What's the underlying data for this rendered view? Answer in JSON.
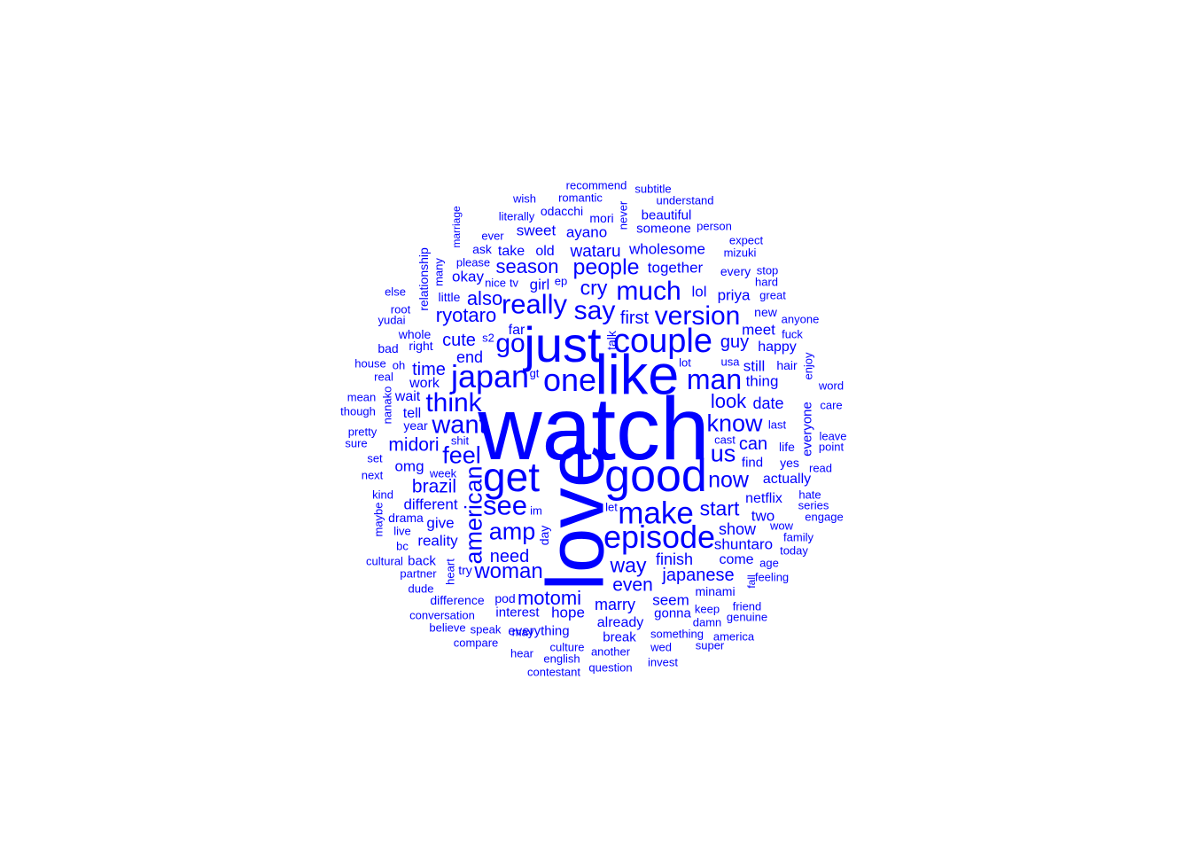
{
  "color": "#0000ff",
  "words": [
    {
      "t": "watch",
      "w": 100
    },
    {
      "t": "love",
      "w": 91
    },
    {
      "t": "like",
      "w": 63
    },
    {
      "t": "just",
      "w": 56
    },
    {
      "t": "good",
      "w": 52
    },
    {
      "t": "get",
      "w": 46
    },
    {
      "t": "couple",
      "w": 38
    },
    {
      "t": "japan",
      "w": 36
    },
    {
      "t": "one",
      "w": 36
    },
    {
      "t": "episode",
      "w": 36
    },
    {
      "t": "make",
      "w": 35
    },
    {
      "t": "man",
      "w": 32
    },
    {
      "t": "really",
      "w": 31
    },
    {
      "t": "see",
      "w": 31
    },
    {
      "t": "version",
      "w": 30
    },
    {
      "t": "much",
      "w": 30
    },
    {
      "t": "say",
      "w": 30
    },
    {
      "t": "think",
      "w": 30
    },
    {
      "t": "go",
      "w": 30
    },
    {
      "t": "want",
      "w": 29
    },
    {
      "t": "american",
      "w": 27
    },
    {
      "t": "know",
      "w": 27
    },
    {
      "t": "amp",
      "w": 27
    },
    {
      "t": "feel",
      "w": 27
    },
    {
      "t": "us",
      "w": 27
    },
    {
      "t": "people",
      "w": 25
    },
    {
      "t": "now",
      "w": 25
    },
    {
      "t": "woman",
      "w": 24
    },
    {
      "t": "start",
      "w": 23
    },
    {
      "t": "cry",
      "w": 23
    },
    {
      "t": "way",
      "w": 23
    },
    {
      "t": "look",
      "w": 22
    },
    {
      "t": "season",
      "w": 22
    },
    {
      "t": "ryotaro",
      "w": 22
    },
    {
      "t": "motomi",
      "w": 22
    },
    {
      "t": "also",
      "w": 22
    },
    {
      "t": "brazil",
      "w": 21
    },
    {
      "t": "midori",
      "w": 21
    },
    {
      "t": "even",
      "w": 21
    },
    {
      "t": "japanese",
      "w": 20
    },
    {
      "t": "cute",
      "w": 20
    },
    {
      "t": "guy",
      "w": 20
    },
    {
      "t": "first",
      "w": 20
    },
    {
      "t": "time",
      "w": 20
    },
    {
      "t": "can",
      "w": 20
    },
    {
      "t": "need",
      "w": 20
    },
    {
      "t": "wataru",
      "w": 19
    },
    {
      "t": "marry",
      "w": 18
    },
    {
      "t": "show",
      "w": 18
    },
    {
      "t": "date",
      "w": 18
    },
    {
      "t": "finish",
      "w": 18
    },
    {
      "t": "end",
      "w": 18
    },
    {
      "t": "ayano",
      "w": 17
    },
    {
      "t": "lol",
      "w": 17
    },
    {
      "t": "different",
      "w": 17
    },
    {
      "t": "give",
      "w": 17
    },
    {
      "t": "two",
      "w": 17
    },
    {
      "t": "shuntaro",
      "w": 17
    },
    {
      "t": "hope",
      "w": 17
    },
    {
      "t": "seem",
      "w": 17
    },
    {
      "t": "meet",
      "w": 17
    },
    {
      "t": "sweet",
      "w": 17
    },
    {
      "t": "priya",
      "w": 17
    },
    {
      "t": "girl",
      "w": 17
    },
    {
      "t": "wholesome",
      "w": 17
    },
    {
      "t": "thing",
      "w": 17
    },
    {
      "t": "omg",
      "w": 17
    },
    {
      "t": "reality",
      "w": 17
    },
    {
      "t": "okay",
      "w": 17
    },
    {
      "t": "together",
      "w": 17
    },
    {
      "t": "still",
      "w": 17
    },
    {
      "t": "take",
      "w": 16
    },
    {
      "t": "old",
      "w": 16
    },
    {
      "t": "work",
      "w": 16
    },
    {
      "t": "tell",
      "w": 16
    },
    {
      "t": "happy",
      "w": 16
    },
    {
      "t": "actually",
      "w": 16
    },
    {
      "t": "netflix",
      "w": 16
    },
    {
      "t": "come",
      "w": 16
    },
    {
      "t": "already",
      "w": 16
    },
    {
      "t": "far",
      "w": 16
    },
    {
      "t": "wait",
      "w": 16
    },
    {
      "t": "someone",
      "w": 15
    },
    {
      "t": "beautiful",
      "w": 15
    },
    {
      "t": "everyone",
      "w": 15
    },
    {
      "t": "find",
      "w": 15
    },
    {
      "t": "gonna",
      "w": 15
    },
    {
      "t": "back",
      "w": 15
    },
    {
      "t": "interest",
      "w": 15
    },
    {
      "t": "everything",
      "w": 15
    },
    {
      "t": "break",
      "w": 15
    },
    {
      "t": "difference",
      "w": 14
    },
    {
      "t": "pod",
      "w": 14
    },
    {
      "t": "mori",
      "w": 14
    },
    {
      "t": "talk",
      "w": 14
    },
    {
      "t": "day",
      "w": 14
    },
    {
      "t": "minami",
      "w": 14
    },
    {
      "t": "yes",
      "w": 14
    },
    {
      "t": "life",
      "w": 14
    },
    {
      "t": "year",
      "w": 14
    },
    {
      "t": "try",
      "w": 14
    },
    {
      "t": "drama",
      "w": 14
    },
    {
      "t": "relationship",
      "w": 14
    },
    {
      "t": "little",
      "w": 14
    },
    {
      "t": "right",
      "w": 14
    },
    {
      "t": "whole",
      "w": 14
    },
    {
      "t": "bad",
      "w": 14
    },
    {
      "t": "ask",
      "w": 14
    },
    {
      "t": "hair",
      "w": 14
    },
    {
      "t": "new",
      "w": 14
    },
    {
      "t": "every",
      "w": 14
    },
    {
      "t": "odacchi",
      "w": 14
    },
    {
      "t": "romantic",
      "w": 13
    },
    {
      "t": "recommend",
      "w": 13
    },
    {
      "t": "subtitle",
      "w": 13
    },
    {
      "t": "understand",
      "w": 13
    },
    {
      "t": "wish",
      "w": 13
    },
    {
      "t": "literally",
      "w": 13
    },
    {
      "t": "never",
      "w": 13
    },
    {
      "t": "person",
      "w": 13
    },
    {
      "t": "marriage",
      "w": 12
    },
    {
      "t": "ever",
      "w": 13
    },
    {
      "t": "expect",
      "w": 13
    },
    {
      "t": "mizuki",
      "w": 13
    },
    {
      "t": "please",
      "w": 13
    },
    {
      "t": "many",
      "w": 13
    },
    {
      "t": "stop",
      "w": 13
    },
    {
      "t": "hard",
      "w": 13
    },
    {
      "t": "great",
      "w": 13
    },
    {
      "t": "nice",
      "w": 13
    },
    {
      "t": "tv",
      "w": 13
    },
    {
      "t": "ep",
      "w": 13
    },
    {
      "t": "else",
      "w": 13
    },
    {
      "t": "root",
      "w": 13
    },
    {
      "t": "yudai",
      "w": 13
    },
    {
      "t": "anyone",
      "w": 13
    },
    {
      "t": "fuck",
      "w": 13
    },
    {
      "t": "s2",
      "w": 13
    },
    {
      "t": "house",
      "w": 13
    },
    {
      "t": "oh",
      "w": 13
    },
    {
      "t": "usa",
      "w": 13
    },
    {
      "t": "lot",
      "w": 13
    },
    {
      "t": "real",
      "w": 13
    },
    {
      "t": "gt",
      "w": 13
    },
    {
      "t": "enjoy",
      "w": 13
    },
    {
      "t": "word",
      "w": 13
    },
    {
      "t": "mean",
      "w": 13
    },
    {
      "t": "nanako",
      "w": 13
    },
    {
      "t": "though",
      "w": 13
    },
    {
      "t": "care",
      "w": 13
    },
    {
      "t": "last",
      "w": 13
    },
    {
      "t": "cast",
      "w": 13
    },
    {
      "t": "pretty",
      "w": 13
    },
    {
      "t": "shit",
      "w": 13
    },
    {
      "t": "sure",
      "w": 13
    },
    {
      "t": "leave",
      "w": 13
    },
    {
      "t": "point",
      "w": 13
    },
    {
      "t": "set",
      "w": 13
    },
    {
      "t": "week",
      "w": 13
    },
    {
      "t": "read",
      "w": 13
    },
    {
      "t": "next",
      "w": 13
    },
    {
      "t": "kind",
      "w": 13
    },
    {
      "t": "hate",
      "w": 13
    },
    {
      "t": "series",
      "w": 13
    },
    {
      "t": "maybe",
      "w": 13
    },
    {
      "t": "im",
      "w": 13
    },
    {
      "t": "let",
      "w": 13
    },
    {
      "t": "engage",
      "w": 13
    },
    {
      "t": "live",
      "w": 13
    },
    {
      "t": "wow",
      "w": 13
    },
    {
      "t": "family",
      "w": 13
    },
    {
      "t": "bc",
      "w": 13
    },
    {
      "t": "today",
      "w": 13
    },
    {
      "t": "cultural",
      "w": 13
    },
    {
      "t": "heart",
      "w": 13
    },
    {
      "t": "age",
      "w": 13
    },
    {
      "t": "partner",
      "w": 13
    },
    {
      "t": "fall",
      "w": 12
    },
    {
      "t": "feeling",
      "w": 13
    },
    {
      "t": "dude",
      "w": 13
    },
    {
      "t": "keep",
      "w": 13
    },
    {
      "t": "friend",
      "w": 13
    },
    {
      "t": "conversation",
      "w": 13
    },
    {
      "t": "genuine",
      "w": 13
    },
    {
      "t": "damn",
      "w": 13
    },
    {
      "t": "believe",
      "w": 13
    },
    {
      "t": "speak",
      "w": 13
    },
    {
      "t": "may",
      "w": 13
    },
    {
      "t": "something",
      "w": 13
    },
    {
      "t": "america",
      "w": 13
    },
    {
      "t": "compare",
      "w": 13
    },
    {
      "t": "culture",
      "w": 13
    },
    {
      "t": "wed",
      "w": 13
    },
    {
      "t": "super",
      "w": 13
    },
    {
      "t": "hear",
      "w": 13
    },
    {
      "t": "english",
      "w": 13
    },
    {
      "t": "another",
      "w": 13
    },
    {
      "t": "invest",
      "w": 13
    },
    {
      "t": "question",
      "w": 13
    },
    {
      "t": "contestant",
      "w": 13
    }
  ]
}
